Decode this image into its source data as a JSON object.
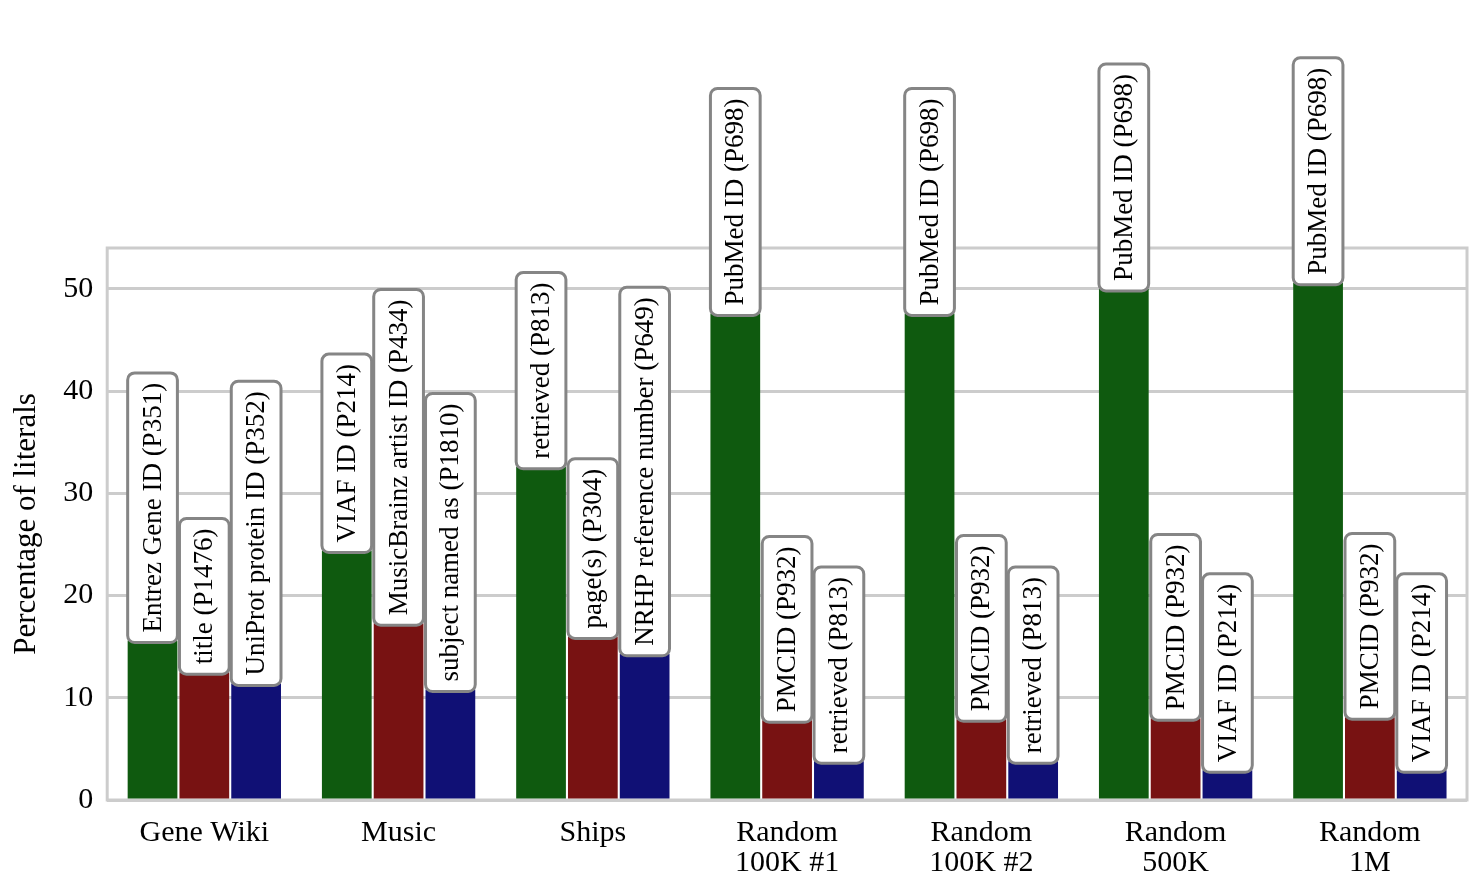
{
  "chart_data": {
    "type": "bar",
    "y_label": "Percentage of literals",
    "categories": [
      "Gene Wiki",
      "Music",
      "Ships",
      "Random\n100K #1",
      "Random\n100K #2",
      "Random\n500K",
      "Random\n1M"
    ],
    "series": [
      {
        "color": "#0f5a0f",
        "values": [
          15.6,
          24.4,
          32.6,
          47.6,
          47.6,
          50.0,
          50.6
        ],
        "bar_labels": [
          "Entrez Gene ID (P351)",
          "VIAF ID (P214)",
          "retrieved (P813)",
          "PubMed ID (P698)",
          "PubMed ID (P698)",
          "PubMed ID (P698)",
          "PubMed ID (P698)"
        ]
      },
      {
        "color": "#781212",
        "values": [
          12.5,
          17.3,
          16.0,
          7.8,
          7.9,
          8.0,
          8.1
        ],
        "bar_labels": [
          "title (P1476)",
          "MusicBrainz artist ID (P434)",
          "page(s) (P304)",
          "PMCID (P932)",
          "PMCID (P932)",
          "PMCID (P932)",
          "PMCID (P932)"
        ]
      },
      {
        "color": "#101075",
        "values": [
          11.4,
          10.8,
          14.3,
          3.8,
          3.8,
          2.9,
          2.9
        ],
        "bar_labels": [
          "UniProt protein ID (P352)",
          "subject named as (P1810)",
          "NRHP reference number (P649)",
          "retrieved (P813)",
          "retrieved (P813)",
          "VIAF ID (P214)",
          "VIAF ID (P214)"
        ]
      }
    ],
    "ylim": [
      0,
      54
    ],
    "yticks": [
      0,
      10,
      20,
      30,
      40,
      50
    ],
    "grid": true
  }
}
